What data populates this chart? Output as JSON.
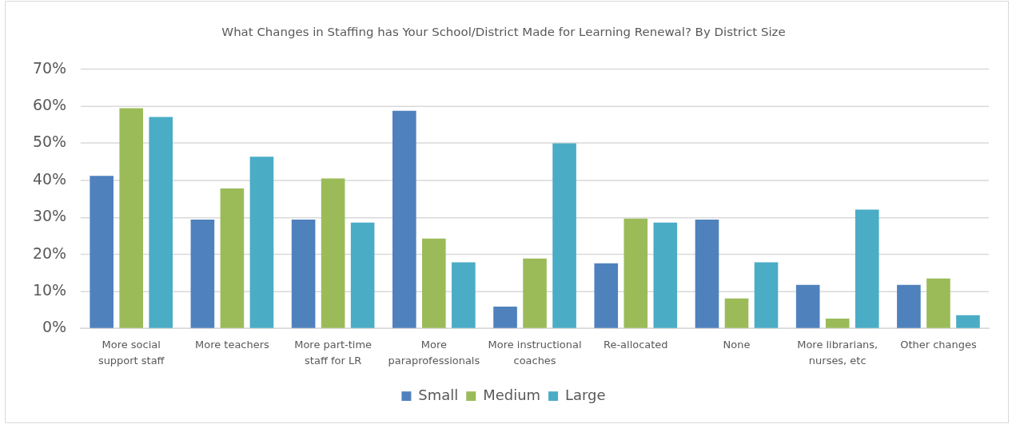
{
  "chart_data": {
    "type": "bar",
    "title": "What Changes in Staffing has Your School/District Made for Learning Renewal? By District Size",
    "categories": [
      "More social support staff",
      "More teachers",
      "More part-time staff for LR",
      "More paraprofessionals",
      "More instructional coaches",
      "Re-allocated",
      "None",
      "More librarians, nurses, etc",
      "Other changes"
    ],
    "series": [
      {
        "name": "Small",
        "color": "#4f81bd",
        "values": [
          41.2,
          29.4,
          29.4,
          58.8,
          5.9,
          17.6,
          29.4,
          11.8,
          11.8
        ]
      },
      {
        "name": "Medium",
        "color": "#9bbb59",
        "values": [
          59.5,
          37.8,
          40.5,
          24.3,
          18.9,
          29.7,
          8.1,
          2.7,
          13.5
        ]
      },
      {
        "name": "Large",
        "color": "#4bacc6",
        "values": [
          57.1,
          46.4,
          28.6,
          17.9,
          50,
          28.6,
          17.9,
          32.1,
          3.6
        ]
      }
    ],
    "ylim": [
      0,
      70
    ],
    "yticks": [
      {
        "value": 0,
        "label": "0%"
      },
      {
        "value": 10,
        "label": "10%"
      },
      {
        "value": 20,
        "label": "20%"
      },
      {
        "value": 30,
        "label": "30%"
      },
      {
        "value": 40,
        "label": "40%"
      },
      {
        "value": 50,
        "label": "50%"
      },
      {
        "value": 60,
        "label": "60%"
      },
      {
        "value": 70,
        "label": "70%"
      }
    ],
    "grid": "y",
    "legend": "bottom"
  }
}
